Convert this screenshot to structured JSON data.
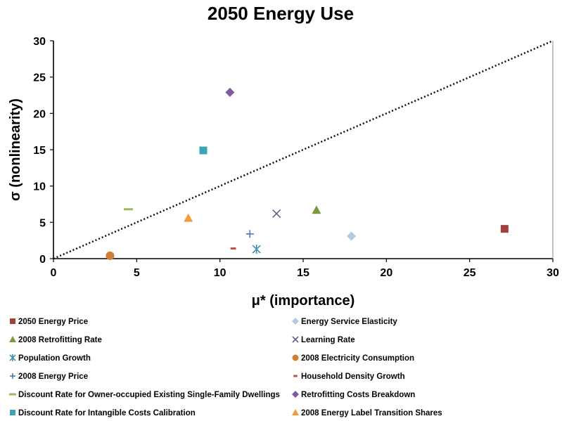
{
  "chart_data": {
    "type": "scatter",
    "title": "2050 Energy Use",
    "xlabel": "μ* (importance)",
    "ylabel": "σ (nonlinearity)",
    "xlim": [
      0,
      30
    ],
    "ylim": [
      0,
      30
    ],
    "xticks": [
      "0",
      "5",
      "10",
      "15",
      "20",
      "25",
      "30"
    ],
    "yticks": [
      "0",
      "5",
      "10",
      "15",
      "20",
      "25",
      "30"
    ],
    "grid": false,
    "legend_position": "bottom",
    "reference_line": {
      "style": "dotted",
      "x": [
        0,
        30
      ],
      "y": [
        0,
        30
      ]
    },
    "series": [
      {
        "name": "2050 Energy Price",
        "marker": "square",
        "color": "#A0413D",
        "x": 27.1,
        "y": 4.1
      },
      {
        "name": "Energy Service Elasticity",
        "marker": "diamond",
        "color": "#B8C8E0",
        "x": 17.9,
        "y": 3.1
      },
      {
        "name": "2008 Retrofitting Rate",
        "marker": "triangle",
        "color": "#7A9A3A",
        "x": 15.8,
        "y": 6.7
      },
      {
        "name": "Learning Rate",
        "marker": "x",
        "color": "#6A5A8E",
        "x": 13.4,
        "y": 6.2
      },
      {
        "name": "Population Growth",
        "marker": "asterisk",
        "color": "#3C93AD",
        "x": 12.2,
        "y": 1.3
      },
      {
        "name": "2008 Electricity Consumption",
        "marker": "circle",
        "color": "#D07F36",
        "x": 3.4,
        "y": 0.4
      },
      {
        "name": "2008 Energy Price",
        "marker": "plus",
        "color": "#4A76B2",
        "x": 11.8,
        "y": 3.4
      },
      {
        "name": "Household Density Growth",
        "marker": "short-dash",
        "color": "#C0504D",
        "x": 10.8,
        "y": 1.4
      },
      {
        "name": "Discount Rate for Owner-occupied Existing Single-Family Dwellings",
        "marker": "long-dash",
        "color": "#9BBB59",
        "x": 4.5,
        "y": 6.8
      },
      {
        "name": "Retrofitting Costs Breakdown",
        "marker": "diamond",
        "color": "#7E5BA0",
        "x": 10.6,
        "y": 22.9
      },
      {
        "name": "Discount Rate for Intangible Costs Calibration",
        "marker": "square",
        "color": "#3DA3B8",
        "x": 9.0,
        "y": 14.9
      },
      {
        "name": "2008 Energy Label Transition Shares",
        "marker": "triangle",
        "color": "#F39A40",
        "x": 8.1,
        "y": 5.6
      }
    ]
  }
}
